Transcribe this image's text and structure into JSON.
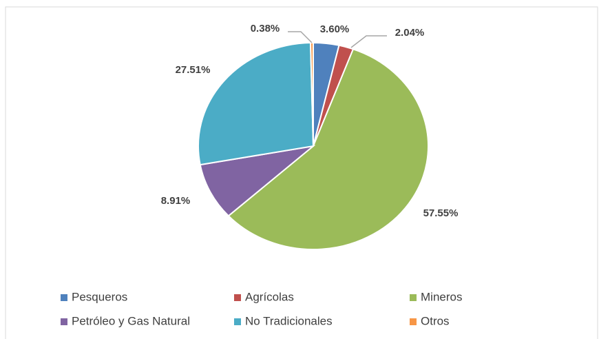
{
  "chart_data": {
    "type": "pie",
    "categories": [
      "Pesqueros",
      "Agrícolas",
      "Mineros",
      "Petróleo y Gas Natural",
      "No Tradicionales",
      "Otros"
    ],
    "values": [
      3.6,
      2.04,
      57.55,
      8.91,
      27.51,
      0.38
    ],
    "value_labels": [
      "3.60%",
      "2.04%",
      "57.55%",
      "8.91%",
      "27.51%",
      "0.38%"
    ],
    "colors": [
      "#4f81bd",
      "#c0504d",
      "#9bbb59",
      "#8064a2",
      "#4bacc6",
      "#f79646"
    ],
    "legend": "bottom"
  }
}
